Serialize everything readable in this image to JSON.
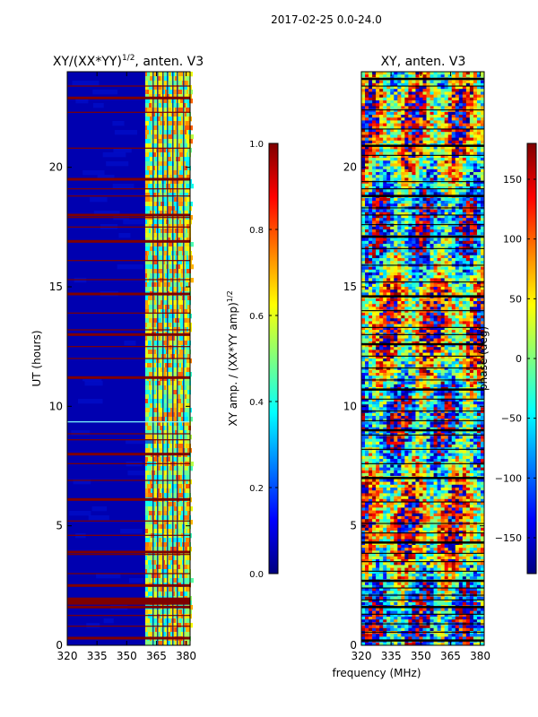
{
  "suptitle": "2017-02-25 0.0-24.0",
  "chart_data": [
    {
      "type": "heatmap",
      "title_main": "XY/(XX*YY)",
      "title_sup": "1/2",
      "title_tail": ", anten. V3",
      "ylabel": "UT (hours)",
      "xlim": [
        320,
        382
      ],
      "ylim": [
        0,
        24
      ],
      "xticks": [
        {
          "value": 320,
          "label": "320"
        },
        {
          "value": 335,
          "label": "335"
        },
        {
          "value": 350,
          "label": "350"
        },
        {
          "value": 365,
          "label": "365"
        },
        {
          "value": 380,
          "label": "380"
        }
      ],
      "yticks": [
        {
          "value": 0,
          "label": "0"
        },
        {
          "value": 5,
          "label": "5"
        },
        {
          "value": 10,
          "label": "10"
        },
        {
          "value": 15,
          "label": "15"
        },
        {
          "value": 20,
          "label": "20"
        }
      ],
      "colorbar": {
        "label_main": "XY amp. / (XX*YY amp)",
        "label_sup": "1/2",
        "range": [
          0.0,
          1.0
        ],
        "ticks": [
          {
            "value": 0.0,
            "label": "0.0"
          },
          {
            "value": 0.2,
            "label": "0.2"
          },
          {
            "value": 0.4,
            "label": "0.4"
          },
          {
            "value": 0.6,
            "label": "0.6"
          },
          {
            "value": 0.8,
            "label": "0.8"
          },
          {
            "value": 1.0,
            "label": "1.0"
          }
        ]
      }
    },
    {
      "type": "heatmap",
      "title": "XY, anten. V3",
      "xlabel": "frequency (MHz)",
      "xlim": [
        320,
        382
      ],
      "ylim": [
        0,
        24
      ],
      "xticks": [
        {
          "value": 320,
          "label": "320"
        },
        {
          "value": 335,
          "label": "335"
        },
        {
          "value": 350,
          "label": "350"
        },
        {
          "value": 365,
          "label": "365"
        },
        {
          "value": 380,
          "label": "380"
        }
      ],
      "yticks": [
        {
          "value": 0,
          "label": "0"
        },
        {
          "value": 5,
          "label": "5"
        },
        {
          "value": 10,
          "label": "10"
        },
        {
          "value": 15,
          "label": "15"
        },
        {
          "value": 20,
          "label": "20"
        }
      ],
      "colorbar": {
        "label": "phase (deg)",
        "range": [
          -180,
          180
        ],
        "ticks": [
          {
            "value": -150,
            "label": "−150"
          },
          {
            "value": -100,
            "label": "−100"
          },
          {
            "value": -50,
            "label": "−50"
          },
          {
            "value": 0,
            "label": "0"
          },
          {
            "value": 50,
            "label": "50"
          },
          {
            "value": 100,
            "label": "100"
          },
          {
            "value": 150,
            "label": "150"
          }
        ]
      }
    }
  ],
  "colors": {
    "dark_blue": "#00007f",
    "dark_red": "#7f0000",
    "jet": [
      "#00007f",
      "#0000ff",
      "#007fff",
      "#00ffff",
      "#7fff7f",
      "#ffff00",
      "#ff7f00",
      "#ff0000",
      "#7f0000"
    ]
  },
  "noise_seed": 7
}
